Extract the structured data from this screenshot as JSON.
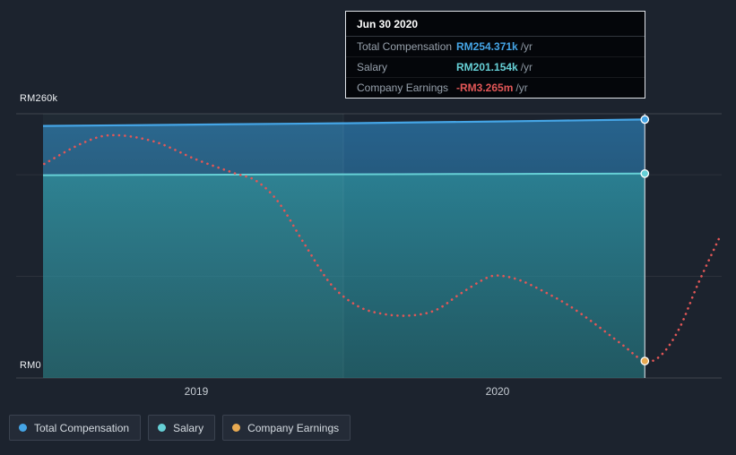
{
  "colors": {
    "background": "#1c232e",
    "total": "#45a5e6",
    "salary": "#66d0d6",
    "earnings_line": "#e25757",
    "earnings_marker": "#e8aa52",
    "tooltip_bg": "#04060a",
    "grid": "#ffffff"
  },
  "tooltip": {
    "date": "Jun 30 2020",
    "rows": [
      {
        "label": "Total Compensation",
        "value": "RM254.371k",
        "suffix": "/yr"
      },
      {
        "label": "Salary",
        "value": "RM201.154k",
        "suffix": "/yr"
      },
      {
        "label": "Company Earnings",
        "value": "-RM3.265m",
        "suffix": "/yr"
      }
    ]
  },
  "axis": {
    "y_top_label": "RM260k",
    "y_bottom_label": "RM0",
    "x_ticks": [
      "2019",
      "2020"
    ]
  },
  "legend": {
    "items": [
      {
        "label": "Total Compensation"
      },
      {
        "label": "Salary"
      },
      {
        "label": "Company Earnings"
      }
    ]
  },
  "chart_data": {
    "type": "line",
    "title": "",
    "x_range": [
      2018.49,
      2020.75
    ],
    "x_ticks": [
      {
        "label": "2019",
        "x": 2019
      },
      {
        "label": "2020",
        "x": 2020
      }
    ],
    "y_axis": {
      "unit": "RM",
      "min": 0,
      "max": 260000,
      "labels": [
        {
          "text": "RM260k",
          "rm": 260000
        },
        {
          "text": "RM0",
          "rm": 0
        }
      ]
    },
    "gridlines": [
      {
        "rm": 260000,
        "major": true
      },
      {
        "rm": 200000,
        "major": false
      },
      {
        "rm": 100000,
        "major": false
      },
      {
        "rm": 0,
        "major": true
      }
    ],
    "legend_position": "bottom-left",
    "fiscal_divider_x": 2019.49,
    "highlight": {
      "x": 2020.494,
      "date": "Jun 30 2020"
    },
    "series": [
      {
        "name": "Total Compensation",
        "key": "total",
        "style": "solid-area",
        "unit": "RM/yr",
        "value_at_highlight": "RM254.371k",
        "points": [
          [
            2018.49,
            248000
          ],
          [
            2019.0,
            249300
          ],
          [
            2019.5,
            250700
          ],
          [
            2020.0,
            252400
          ],
          [
            2020.494,
            254371
          ]
        ]
      },
      {
        "name": "Salary",
        "key": "salary",
        "style": "solid-area",
        "unit": "RM/yr",
        "value_at_highlight": "RM201.154k",
        "points": [
          [
            2018.49,
            199500
          ],
          [
            2019.0,
            200000
          ],
          [
            2019.5,
            200400
          ],
          [
            2020.0,
            200800
          ],
          [
            2020.494,
            201154
          ]
        ]
      },
      {
        "name": "Company Earnings",
        "key": "earnings",
        "style": "dotted",
        "unit": "RM/yr",
        "value_at_highlight": "-RM3.265m",
        "scale": "normalized-fraction-of-plot-height",
        "points_norm": [
          [
            2018.494,
            0.81
          ],
          [
            2018.62,
            0.888
          ],
          [
            2018.72,
            0.919
          ],
          [
            2018.86,
            0.895
          ],
          [
            2019.0,
            0.827
          ],
          [
            2019.125,
            0.776
          ],
          [
            2019.2,
            0.746
          ],
          [
            2019.275,
            0.664
          ],
          [
            2019.36,
            0.508
          ],
          [
            2019.45,
            0.353
          ],
          [
            2019.54,
            0.271
          ],
          [
            2019.63,
            0.241
          ],
          [
            2019.72,
            0.237
          ],
          [
            2019.8,
            0.258
          ],
          [
            2019.88,
            0.319
          ],
          [
            2019.97,
            0.38
          ],
          [
            2020.02,
            0.386
          ],
          [
            2020.08,
            0.369
          ],
          [
            2020.15,
            0.332
          ],
          [
            2020.24,
            0.275
          ],
          [
            2020.33,
            0.203
          ],
          [
            2020.42,
            0.125
          ],
          [
            2020.494,
            0.064
          ],
          [
            2020.55,
            0.088
          ],
          [
            2020.61,
            0.19
          ],
          [
            2020.67,
            0.353
          ],
          [
            2020.747,
            0.542
          ]
        ]
      }
    ]
  }
}
